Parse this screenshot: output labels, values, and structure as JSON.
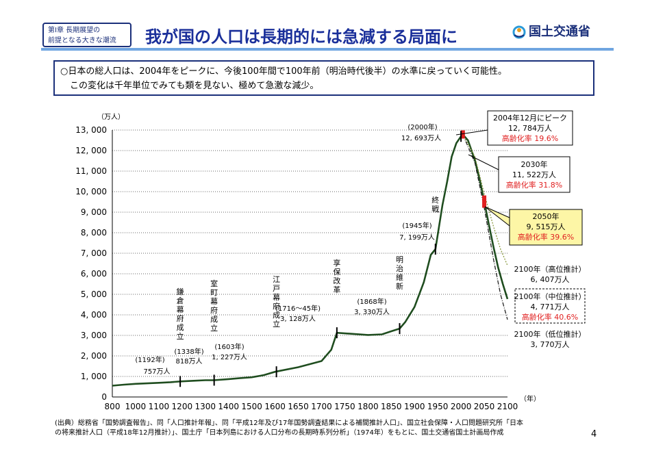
{
  "header": {
    "chapter_line1": "第Ⅰ章 長期展望の",
    "chapter_line2": "前提となる大きな潮流",
    "title": "我が国の人口は長期的には急減する局面に",
    "logo_text": "国土交通省"
  },
  "summary": {
    "line1": "○日本の総人口は、2004年をピークに、今後100年間で100年前（明治時代後半）の水準に戻っていく可能性。",
    "line2": "この変化は千年単位でみても類を見ない、極めて急激な減少。"
  },
  "source": {
    "line1": "(出典）総務省「国勢調査報告」、同「人口推計年報」、同「平成12年及び17年国勢調査結果による補間推計人口」、国立社会保障・人口問題研究所「日本",
    "line2": "の将来推計人口（平成18年12月推計）」、国土庁「日本列島における人口分布の長期時系列分析」（1974年）をもとに、国土交通省国土計画局作成"
  },
  "page_number": "4",
  "chart_data": {
    "type": "line",
    "ylabel": "（万人）",
    "xlabel": "（年）",
    "xlim": [
      800,
      2100
    ],
    "ylim": [
      0,
      13000
    ],
    "x_ticks": [
      "800",
      "1000",
      "1100",
      "1200",
      "1300",
      "1400",
      "1500",
      "1600",
      "1650",
      "1700",
      "1750",
      "1800",
      "1850",
      "1900",
      "1950",
      "2000",
      "2050",
      "2100"
    ],
    "y_ticks": [
      "0",
      "1, 000",
      "2, 000",
      "3, 000",
      "4, 000",
      "5, 000",
      "6, 000",
      "7, 000",
      "8, 000",
      "9, 000",
      "10, 000",
      "11, 000",
      "12, 000",
      "13, 000"
    ],
    "series": [
      {
        "name": "",
        "color": "#1f4d1f",
        "points": [
          [
            800,
            551
          ],
          [
            900,
            600
          ],
          [
            1000,
            640
          ],
          [
            1100,
            690
          ],
          [
            1150,
            720
          ],
          [
            1192,
            757
          ],
          [
            1250,
            790
          ],
          [
            1300,
            818
          ],
          [
            1338,
            818
          ],
          [
            1400,
            870
          ],
          [
            1450,
            920
          ],
          [
            1500,
            960
          ],
          [
            1550,
            1060
          ],
          [
            1600,
            1227
          ],
          [
            1650,
            1450
          ],
          [
            1700,
            1750
          ],
          [
            1721,
            2300
          ],
          [
            1733,
            3128
          ],
          [
            1800,
            3020
          ],
          [
            1830,
            3050
          ],
          [
            1850,
            3200
          ],
          [
            1868,
            3330
          ],
          [
            1880,
            3650
          ],
          [
            1900,
            4380
          ],
          [
            1920,
            5590
          ],
          [
            1935,
            6920
          ],
          [
            1945,
            7199
          ],
          [
            1960,
            9340
          ],
          [
            1970,
            10470
          ],
          [
            1980,
            11700
          ],
          [
            1990,
            12360
          ],
          [
            2000,
            12693
          ],
          [
            2004,
            12784
          ]
        ]
      },
      {
        "name": "",
        "color": "#1f4d1f",
        "points": [
          [
            2004,
            12784
          ],
          [
            2015,
            12500
          ],
          [
            2030,
            11522
          ],
          [
            2040,
            10600
          ],
          [
            2050,
            9515
          ],
          [
            2060,
            8400
          ],
          [
            2070,
            7300
          ],
          [
            2080,
            6300
          ],
          [
            2090,
            5500
          ],
          [
            2100,
            4771
          ]
        ]
      },
      {
        "name": "",
        "color": "#8a9a40",
        "dash": "dotted",
        "points": [
          [
            2004,
            12784
          ],
          [
            2030,
            11700
          ],
          [
            2050,
            9900
          ],
          [
            2070,
            8300
          ],
          [
            2085,
            7200
          ],
          [
            2100,
            6407
          ]
        ]
      },
      {
        "name": "",
        "color": "#222222",
        "dash": "dashdot",
        "points": [
          [
            2004,
            12784
          ],
          [
            2030,
            11400
          ],
          [
            2050,
            9200
          ],
          [
            2070,
            6700
          ],
          [
            2085,
            5000
          ],
          [
            2100,
            3770
          ]
        ]
      }
    ],
    "annotations": [
      {
        "id": "kamakura",
        "vertical": "鎌倉幕府成立",
        "year": "(1192年)",
        "pop": "757万人",
        "x": 1192,
        "y": 757
      },
      {
        "id": "muromachi",
        "vertical": "室町幕府成立",
        "year": "(1338年)",
        "pop": "818万人",
        "x": 1338,
        "y": 818
      },
      {
        "id": "edo",
        "vertical": "江戸幕府成立",
        "year": "(1603年)",
        "pop": "1, 227万人",
        "x": 1603,
        "y": 1227
      },
      {
        "id": "kyoho",
        "vertical": "享保改革",
        "year": "(1716～45年)",
        "pop": "3, 128万人",
        "x": 1733,
        "y": 3128
      },
      {
        "id": "meiji",
        "vertical": "明治維新",
        "year": "(1868年)",
        "pop": "3, 330万人",
        "x": 1868,
        "y": 3330
      },
      {
        "id": "shusen",
        "vertical": "終戦",
        "year": "(1945年)",
        "pop": "7, 199万人",
        "x": 1945,
        "y": 7199
      },
      {
        "id": "y2000",
        "vertical": "",
        "year": "(2000年)",
        "pop": "12, 693万人",
        "x": 2000,
        "y": 12693
      }
    ],
    "callouts": {
      "peak": {
        "line1": "2004年12月にピーク",
        "line2": "12, 784万人",
        "line3": "高齢化率 19.6%"
      },
      "y2030": {
        "line1": "2030年",
        "line2": "11, 522万人",
        "line3": "高齢化率 31.8%"
      },
      "y2050": {
        "line1": "2050年",
        "line2": "9, 515万人",
        "line3": "高齢化率 39.6%"
      },
      "high": {
        "line1": "2100年（高位推計）",
        "line2": "6, 407万人"
      },
      "mid": {
        "line1": "2100年（中位推計）",
        "line2": "4, 771万人",
        "line3": "高齢化率 40.6%"
      },
      "low": {
        "line1": "2100年（低位推計）",
        "line2": "3, 770万人"
      }
    },
    "grid": true,
    "colors": {
      "line": "#1f4d1f",
      "accent": "#e02020",
      "highlight": "#fdf6a6",
      "title": "#1a2f9a"
    }
  }
}
